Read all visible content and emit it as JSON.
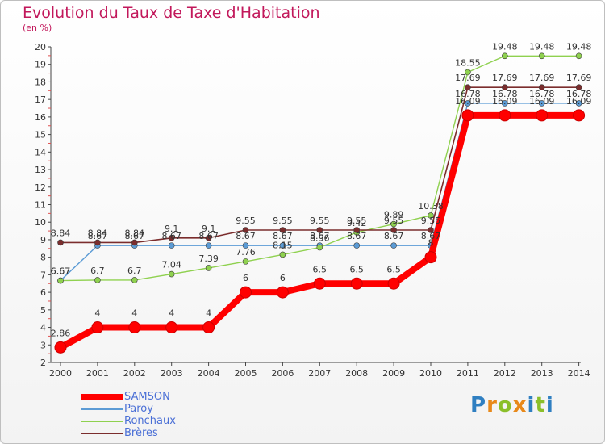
{
  "header": {
    "title": "Evolution du Taux de Taxe d'Habitation",
    "subtitle": "(en %)"
  },
  "logo": {
    "text": "Proxiti",
    "letters": [
      "P",
      "r",
      "o",
      "x",
      "i",
      "t",
      "i"
    ]
  },
  "chart_data": {
    "type": "line",
    "title": "Evolution du Taux de Taxe d'Habitation",
    "ylabel": "(en %)",
    "xlabel": "",
    "x": [
      2000,
      2001,
      2002,
      2003,
      2004,
      2005,
      2006,
      2007,
      2008,
      2009,
      2010,
      2011,
      2012,
      2013,
      2014
    ],
    "ylim": [
      2,
      20
    ],
    "yticks": [
      2,
      3,
      4,
      5,
      6,
      7,
      8,
      9,
      10,
      11,
      12,
      13,
      14,
      15,
      16,
      17,
      18,
      19,
      20
    ],
    "grid": false,
    "legend_position": "bottom-left",
    "series": [
      {
        "name": "Paroy",
        "color": "#5b9bd5",
        "values": [
          6.67,
          8.67,
          8.67,
          8.67,
          8.67,
          8.67,
          8.67,
          8.67,
          8.67,
          8.67,
          8.67,
          16.78,
          16.78,
          16.78,
          16.78
        ],
        "labels": [
          "6.67",
          "8.67",
          "8.67",
          "8.67",
          "8.67",
          "8.67",
          "8.67",
          "8.67",
          "8.67",
          "8.67",
          "8.67",
          "16.78",
          "16.78",
          "16.78",
          "16.78"
        ]
      },
      {
        "name": "Ronchaux",
        "color": "#8fd14f",
        "values": [
          6.67,
          6.7,
          6.7,
          7.04,
          7.39,
          7.76,
          8.15,
          8.56,
          9.42,
          9.89,
          10.38,
          18.55,
          19.48,
          19.48,
          19.48
        ],
        "labels": [
          "6.67",
          "6.7",
          "6.7",
          "7.04",
          "7.39",
          "7.76",
          "8.15",
          "8.56",
          "9.42",
          "9.89",
          "10.38",
          "18.55",
          "19.48",
          "19.48",
          "19.48"
        ]
      },
      {
        "name": "Brères",
        "color": "#7b2d2d",
        "values": [
          8.84,
          8.84,
          8.84,
          9.1,
          9.1,
          9.55,
          9.55,
          9.55,
          9.55,
          9.55,
          9.55,
          17.69,
          17.69,
          17.69,
          17.69
        ],
        "labels": [
          "8.84",
          "8.84",
          "8.84",
          "9.1",
          "9.1",
          "9.55",
          "9.55",
          "9.55",
          "9.55",
          "9.55",
          "9.55",
          "17.69",
          "17.69",
          "17.69",
          "17.69"
        ]
      },
      {
        "name": "SAMSON",
        "color": "#ff0000",
        "values": [
          2.86,
          4,
          4,
          4,
          4,
          6,
          6,
          6.5,
          6.5,
          6.5,
          8,
          16.09,
          16.09,
          16.09,
          16.09
        ],
        "labels": [
          "2.86",
          "4",
          "4",
          "4",
          "4",
          "6",
          "6",
          "6.5",
          "6.5",
          "6.5",
          "8",
          "16.09",
          "16.09",
          "16.09",
          "16.09"
        ]
      }
    ]
  }
}
